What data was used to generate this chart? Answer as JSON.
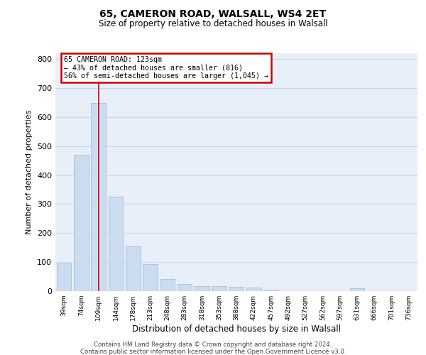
{
  "title1": "65, CAMERON ROAD, WALSALL, WS4 2ET",
  "title2": "Size of property relative to detached houses in Walsall",
  "xlabel": "Distribution of detached houses by size in Walsall",
  "ylabel": "Number of detached properties",
  "categories": [
    "39sqm",
    "74sqm",
    "109sqm",
    "144sqm",
    "178sqm",
    "213sqm",
    "248sqm",
    "283sqm",
    "318sqm",
    "353sqm",
    "388sqm",
    "422sqm",
    "457sqm",
    "492sqm",
    "527sqm",
    "562sqm",
    "597sqm",
    "631sqm",
    "666sqm",
    "701sqm",
    "736sqm"
  ],
  "values": [
    95,
    470,
    648,
    325,
    155,
    92,
    42,
    25,
    18,
    16,
    14,
    12,
    6,
    0,
    0,
    0,
    0,
    10,
    0,
    0,
    0
  ],
  "bar_color": "#ccdcf0",
  "bar_edge_color": "#a8c4e0",
  "grid_color": "#c8d8ec",
  "bg_color": "#e8eff8",
  "red_line_x": 2.0,
  "annotation_text": "65 CAMERON ROAD: 123sqm\n← 43% of detached houses are smaller (816)\n56% of semi-detached houses are larger (1,045) →",
  "annotation_box_color": "#cc0000",
  "ylim": [
    0,
    820
  ],
  "yticks": [
    0,
    100,
    200,
    300,
    400,
    500,
    600,
    700,
    800
  ],
  "footer1": "Contains HM Land Registry data © Crown copyright and database right 2024.",
  "footer2": "Contains public sector information licensed under the Open Government Licence v3.0."
}
